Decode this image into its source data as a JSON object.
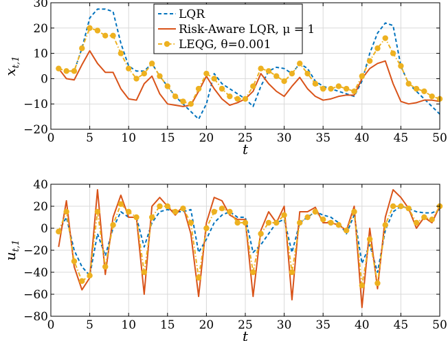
{
  "colors": {
    "lqr": "#0072BD",
    "risk_aware": "#D95319",
    "leqg": "#EDB120",
    "grid": "#d9d9d9",
    "axis": "#000000"
  },
  "chart_data": [
    {
      "type": "line",
      "xlabel": "t",
      "ylabel_main": "x",
      "ylabel_sub": "t,1",
      "xlim": [
        0,
        50
      ],
      "ylim": [
        -20,
        30
      ],
      "xticks": [
        0,
        5,
        10,
        15,
        20,
        25,
        30,
        35,
        40,
        45,
        50
      ],
      "yticks": [
        -20,
        -10,
        0,
        10,
        20,
        30
      ],
      "xtick_labels": [
        "0",
        "5",
        "10",
        "15",
        "20",
        "25",
        "30",
        "35",
        "40",
        "45",
        "50"
      ],
      "ytick_labels": [
        "−20",
        "−10",
        "0",
        "10",
        "20",
        "30"
      ],
      "grid": true,
      "legend_position": "top-center",
      "x": [
        1,
        2,
        3,
        4,
        5,
        6,
        7,
        8,
        9,
        10,
        11,
        12,
        13,
        14,
        15,
        16,
        17,
        18,
        19,
        20,
        21,
        22,
        23,
        24,
        25,
        26,
        27,
        28,
        29,
        30,
        31,
        32,
        33,
        34,
        35,
        36,
        37,
        38,
        39,
        40,
        41,
        42,
        43,
        44,
        45,
        46,
        47,
        48,
        49,
        50
      ],
      "series": [
        {
          "name": "LQR",
          "style": "dashed",
          "values": [
            4,
            3,
            3,
            12,
            24,
            27.5,
            27.5,
            26.5,
            14,
            5,
            3,
            3,
            6,
            1,
            -3,
            -7,
            -10,
            -13,
            -16,
            -10,
            2,
            -2,
            -4,
            -6,
            -8,
            -11,
            -3,
            3,
            4.5,
            4,
            2,
            6,
            4,
            -1,
            -3,
            -4,
            -5,
            -6,
            -7,
            -1,
            10,
            18,
            22,
            21,
            5,
            -2,
            -5,
            -8,
            -11,
            -14
          ]
        },
        {
          "name": "Risk-Aware LQR, μ = 1",
          "style": "solid",
          "values": [
            4,
            0,
            -0.5,
            5.5,
            11,
            6,
            2.5,
            2.5,
            -4,
            -8,
            -8.5,
            -2,
            1,
            -6,
            -10,
            -10.5,
            -11,
            -10.5,
            -5,
            1,
            -4,
            -8,
            -10.5,
            -9.5,
            -8,
            -5,
            2,
            -2,
            -5,
            -7,
            -3,
            0.5,
            -4,
            -7,
            -8.5,
            -8,
            -7,
            -6.5,
            -6.5,
            0,
            4,
            6,
            7,
            -2,
            -9,
            -10,
            -9.5,
            -8.5,
            -8.5,
            -9
          ]
        },
        {
          "name": "LEQG, θ=0.001",
          "style": "dash-dot",
          "values": [
            4,
            3,
            3,
            12,
            20,
            19,
            17,
            17,
            10,
            4,
            0,
            2,
            6,
            1,
            -3,
            -7,
            -9,
            -10,
            -4,
            2,
            0,
            -4,
            -7,
            -8,
            -8,
            -3,
            4,
            3,
            1,
            -1,
            2,
            6,
            2,
            -2,
            -4,
            -4,
            -3,
            -4,
            -5,
            1,
            7,
            12,
            16,
            10,
            5,
            -2,
            -4,
            -5,
            -7,
            -8
          ]
        }
      ]
    },
    {
      "type": "line",
      "xlabel": "t",
      "ylabel_main": "u",
      "ylabel_sub": "t,1",
      "xlim": [
        0,
        50
      ],
      "ylim": [
        -80,
        40
      ],
      "xticks": [
        0,
        5,
        10,
        15,
        20,
        25,
        30,
        35,
        40,
        45,
        50
      ],
      "yticks": [
        -80,
        -60,
        -40,
        -20,
        0,
        20,
        40
      ],
      "xtick_labels": [
        "0",
        "5",
        "10",
        "15",
        "20",
        "25",
        "30",
        "35",
        "40",
        "45",
        "50"
      ],
      "ytick_labels": [
        "−80",
        "−60",
        "−40",
        "−20",
        "0",
        "20",
        "40"
      ],
      "grid": true,
      "x": [
        1,
        2,
        3,
        4,
        5,
        6,
        7,
        8,
        9,
        10,
        11,
        12,
        13,
        14,
        15,
        16,
        17,
        18,
        19,
        20,
        21,
        22,
        23,
        24,
        25,
        26,
        27,
        28,
        29,
        30,
        31,
        32,
        33,
        34,
        35,
        36,
        37,
        38,
        39,
        40,
        41,
        42,
        43,
        44,
        45,
        46,
        47,
        48,
        49,
        50
      ],
      "series": [
        {
          "name": "LQR",
          "style": "dashed",
          "values": [
            -3,
            10,
            -20,
            -35,
            -43,
            -5,
            -25,
            0,
            15,
            10,
            10,
            -17,
            5,
            15,
            17,
            15,
            15,
            17,
            -22,
            -10,
            5,
            12,
            15,
            10,
            10,
            -22,
            -15,
            -5,
            5,
            8,
            -22,
            5,
            10,
            15,
            12,
            10,
            5,
            -5,
            12,
            -32,
            -15,
            -40,
            -2,
            15,
            20,
            18,
            15,
            14,
            14,
            17
          ]
        },
        {
          "name": "Risk-Aware LQR, μ = 1",
          "style": "solid",
          "values": [
            -17,
            25,
            -35,
            -56,
            -45,
            35,
            -42,
            10,
            30,
            10,
            10,
            -60,
            20,
            28,
            20,
            12,
            20,
            -5,
            -62,
            5,
            28,
            25,
            12,
            8,
            8,
            -62,
            -2,
            15,
            5,
            20,
            -65,
            15,
            15,
            19,
            5,
            5,
            3,
            -2,
            20,
            -72,
            0,
            -55,
            10,
            35,
            28,
            18,
            0,
            10,
            5,
            20
          ]
        },
        {
          "name": "LEQG, θ=0.001",
          "style": "dash-dot",
          "values": [
            -3,
            15,
            -30,
            -48,
            -43,
            15,
            -35,
            3,
            22,
            15,
            10,
            -40,
            10,
            20,
            20,
            15,
            18,
            5,
            -45,
            0,
            15,
            18,
            15,
            5,
            5,
            -40,
            -5,
            5,
            5,
            12,
            -40,
            5,
            10,
            15,
            8,
            5,
            3,
            -2,
            15,
            -52,
            -10,
            -50,
            3,
            20,
            20,
            18,
            5,
            10,
            8,
            20
          ]
        }
      ]
    }
  ]
}
